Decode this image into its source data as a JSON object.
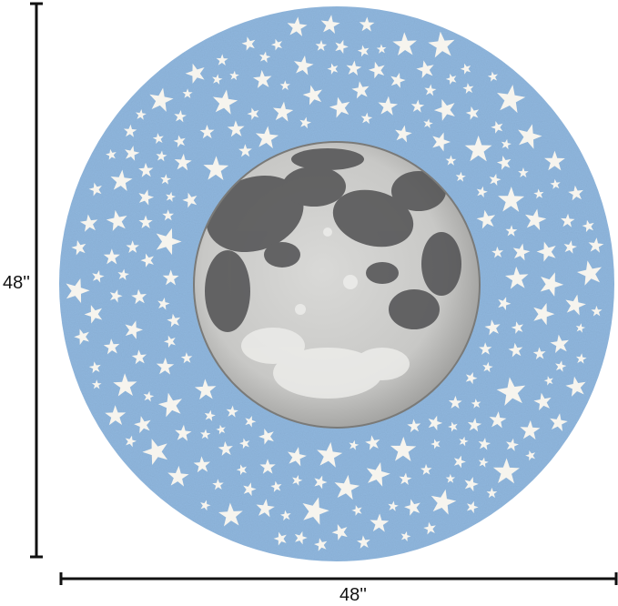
{
  "dimensions": {
    "height_label": "48''",
    "width_label": "48''"
  },
  "colors": {
    "rug_blue": "#8fb6dd",
    "star": "#f6f4ee",
    "moon_light": "#e6e6e4",
    "moon_dark": "#505052",
    "dimension_line": "#111111"
  },
  "icons": [
    "star-icon",
    "moon-icon"
  ]
}
